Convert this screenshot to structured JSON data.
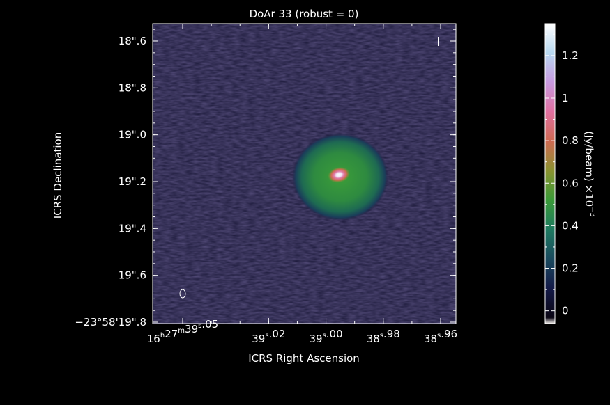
{
  "chart_data": {
    "type": "heatmap",
    "title": "DoAr 33 (robust = 0)",
    "xlabel": "ICRS Right Ascension",
    "ylabel": "ICRS Declination",
    "x_ticks": [
      {
        "label": "16h27m39s.05",
        "ra_s": 39.05,
        "parts": [
          [
            "16",
            "h"
          ],
          [
            "27",
            "m"
          ],
          [
            "39",
            "s"
          ],
          [
            ".05",
            ""
          ]
        ]
      },
      {
        "label": "39s.02",
        "ra_s": 39.02,
        "parts": [
          [
            "39",
            "s"
          ],
          [
            ".02",
            ""
          ]
        ]
      },
      {
        "label": "39s.00",
        "ra_s": 39.0,
        "parts": [
          [
            "39",
            "s"
          ],
          [
            ".00",
            ""
          ]
        ]
      },
      {
        "label": "38s.98",
        "ra_s": 38.98,
        "parts": [
          [
            "38",
            "s"
          ],
          [
            ".98",
            ""
          ]
        ]
      },
      {
        "label": "38s.96",
        "ra_s": 38.96,
        "parts": [
          [
            "38",
            "s"
          ],
          [
            ".96",
            ""
          ]
        ]
      }
    ],
    "y_ticks": [
      {
        "label": "18\".6",
        "dec_arcsec": 18.6
      },
      {
        "label": "18\".8",
        "dec_arcsec": 18.8
      },
      {
        "label": "19\".0",
        "dec_arcsec": 19.0
      },
      {
        "label": "19\".2",
        "dec_arcsec": 19.2
      },
      {
        "label": "19\".4",
        "dec_arcsec": 19.4
      },
      {
        "label": "19\".6",
        "dec_arcsec": 19.6
      },
      {
        "label": "−23°58'19\".8",
        "dec_arcsec": 19.8
      }
    ],
    "colorbar": {
      "label": "(Jy/beam) ×10",
      "exponent": "−3",
      "ticks": [
        "0",
        "0.2",
        "0.4",
        "0.6",
        "0.8",
        "1",
        "1.2"
      ],
      "tick_values": [
        0,
        0.2,
        0.4,
        0.6,
        0.8,
        1.0,
        1.2
      ],
      "range": [
        -0.06,
        1.35
      ],
      "colors": [
        "#f0ece8",
        "#0a0614",
        "#141a48",
        "#1a4a5e",
        "#1e7a60",
        "#3a9a38",
        "#8a9230",
        "#cf6a52",
        "#e070a0",
        "#c89ae0",
        "#b8d8f0",
        "#ffffff"
      ]
    },
    "source": {
      "ra_s": 38.995,
      "dec_arcsec": 19.18,
      "disk_radius_arcsec": 0.19,
      "peak_value": 1.35
    },
    "grid": false
  }
}
